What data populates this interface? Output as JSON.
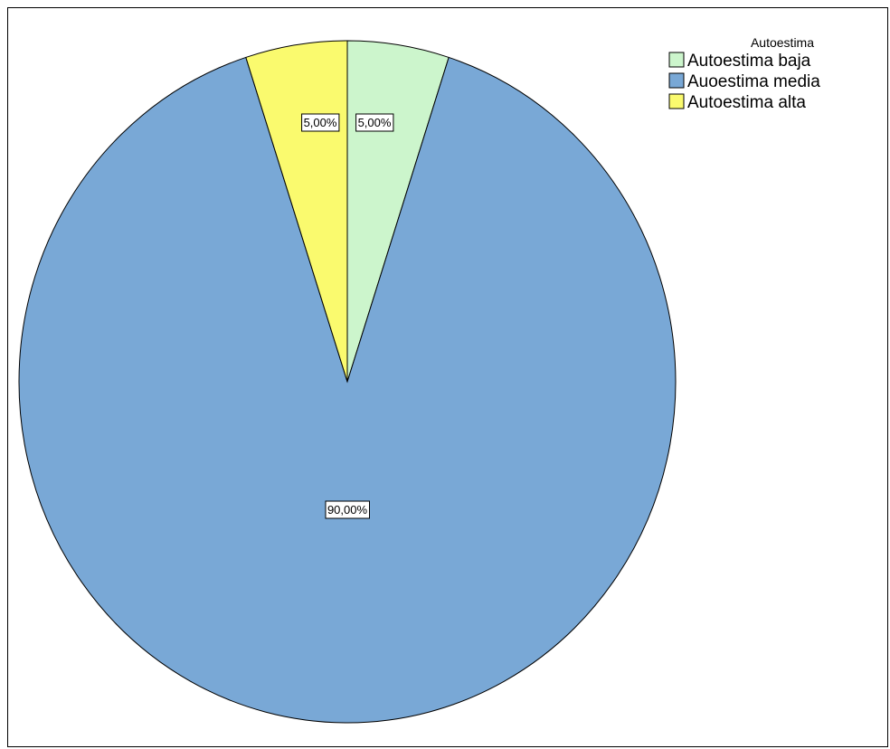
{
  "chart_data": {
    "type": "pie",
    "legend": {
      "title": "Autoestima",
      "placement": "top-right"
    },
    "slices": [
      {
        "name": "Autoestima baja",
        "value": 5.0,
        "label": "5,00%",
        "color": "#ccf5cc"
      },
      {
        "name": "Auoestima media",
        "value": 90.0,
        "label": "90,00%",
        "color": "#79a8d6"
      },
      {
        "name": "Autoestima alta",
        "value": 5.0,
        "label": "5,00%",
        "color": "#fafa6e"
      }
    ],
    "start_angle_deg": 0,
    "direction": "clockwise"
  }
}
